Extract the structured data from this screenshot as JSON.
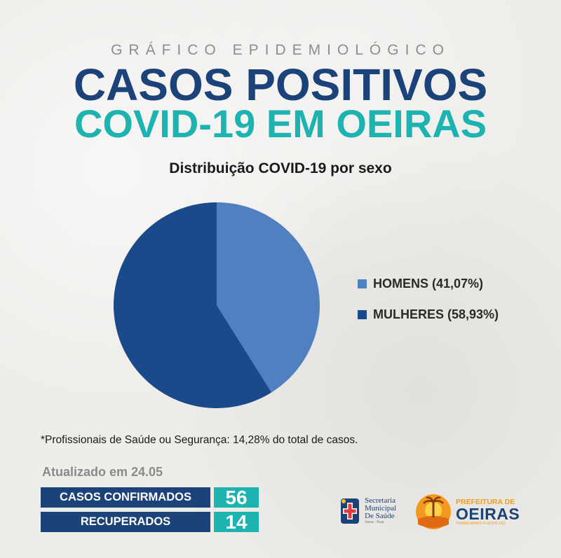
{
  "header": {
    "supertitle": "GRÁFICO EPIDEMIOLÓGICO",
    "title_line1": "CASOS POSITIVOS",
    "title_line2": "COVID-19 EM OEIRAS"
  },
  "chart_data": {
    "type": "pie",
    "title": "Distribuição COVID-19 por sexo",
    "categories": [
      "HOMENS (41,07%)",
      "MULHERES (58,93%)"
    ],
    "values": [
      41.07,
      58.93
    ],
    "colors": [
      "#5180c1",
      "#1b4a8a"
    ],
    "legend_position": "right"
  },
  "note": "*Profissionais de Saúde ou Segurança: 14,28% do total de casos.",
  "updated": "Atualizado em 24.05",
  "stats": [
    {
      "label": "CASOS CONFIRMADOS",
      "value": "56"
    },
    {
      "label": "RECUPERADOS",
      "value": "14"
    }
  ],
  "logos": {
    "secretaria": {
      "line1": "Secretaria",
      "line2": "Municipal",
      "line3": "De Saúde",
      "line4": "Oeiras - Piauí"
    },
    "prefeitura": {
      "line1": "PREFEITURA DE",
      "line2": "OEIRAS",
      "line3": "TRABALHANDO A GENTE FAZ"
    }
  },
  "colors": {
    "navy": "#1b4379",
    "teal": "#1db3b0",
    "gray": "#8d8d8d",
    "orange": "#f39a1e"
  }
}
